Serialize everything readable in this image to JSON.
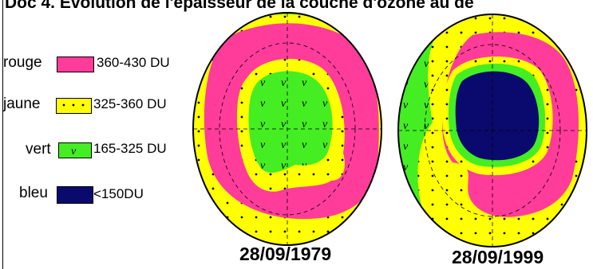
{
  "title": "Doc 4. Évolution de l'épaisseur de la couche d'ozone au de",
  "legend": [
    {
      "name": "rouge",
      "range": "360-430 DU",
      "color": "#ff3c9a"
    },
    {
      "name": "jaune",
      "range": "325-360 DU",
      "color": "#ffff00"
    },
    {
      "name": "vert",
      "range": "165-325 DU",
      "color": "#44ee22"
    },
    {
      "name": "bleu",
      "range": "<150DU",
      "color": "#0a0a6e"
    }
  ],
  "maps": [
    {
      "date": "28/09/1979"
    },
    {
      "date": "28/09/1999"
    }
  ]
}
